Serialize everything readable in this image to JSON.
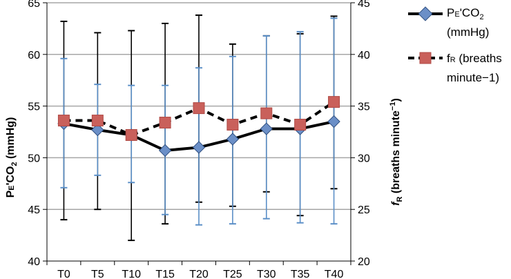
{
  "chart_data": {
    "type": "line",
    "categories": [
      "T0",
      "T5",
      "T10",
      "T15",
      "T20",
      "T25",
      "T30",
      "T35",
      "T40"
    ],
    "ylabel_left": "PE'CO2 (mmHg)",
    "ylabel_right": "fR (breaths minute−1)",
    "ylim_left": [
      40,
      65
    ],
    "ylim_right": [
      20,
      45
    ],
    "yticks_left": [
      40,
      45,
      50,
      55,
      60,
      65
    ],
    "yticks_right": [
      20,
      25,
      30,
      35,
      40,
      45
    ],
    "grid": true,
    "legend_position": "right",
    "series": [
      {
        "name": "PE'CO2 (mmHg)",
        "axis": "left",
        "line_style": "solid",
        "marker": "diamond",
        "color": "#000000",
        "marker_color": "#6b8fc7",
        "error_bar_color": "#000000",
        "values": [
          53.3,
          52.7,
          52.2,
          50.7,
          51.0,
          51.8,
          52.8,
          52.8,
          53.5
        ],
        "error_low": [
          44.0,
          45.0,
          42.0,
          43.6,
          45.7,
          45.3,
          46.7,
          44.4,
          47.0
        ],
        "error_high": [
          63.2,
          62.1,
          62.3,
          63.0,
          63.8,
          61.0,
          61.8,
          62.0,
          63.7
        ]
      },
      {
        "name": "fR (breaths minute−1)",
        "axis": "right",
        "line_style": "dashed",
        "marker": "square",
        "color": "#000000",
        "marker_color": "#c9605b",
        "error_bar_color": "#5b8fc7",
        "values": [
          33.6,
          33.6,
          32.2,
          33.4,
          34.8,
          33.2,
          34.3,
          33.2,
          35.4
        ],
        "error_low": [
          27.1,
          28.3,
          27.6,
          24.5,
          23.5,
          23.6,
          24.1,
          23.7,
          23.6
        ],
        "error_high": [
          39.6,
          37.1,
          37.0,
          37.0,
          38.7,
          39.8,
          41.8,
          42.2,
          43.5
        ]
      }
    ]
  },
  "legend": {
    "item1_line1": "PE'CO2",
    "item1_line2": "(mmHg)",
    "item2_line1": "fR (breaths",
    "item2_line2": "minute−1)"
  }
}
